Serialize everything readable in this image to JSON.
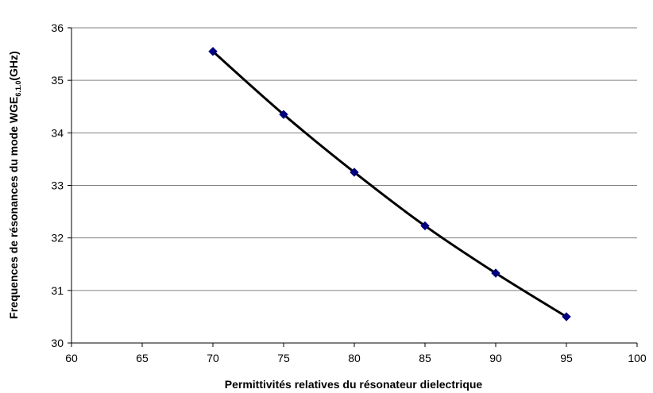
{
  "chart_data": {
    "type": "line",
    "xlabel": "Permittivités relatives du résonateur dielectrique",
    "ylabel": {
      "main": "Frequences de résonances du mode WGE",
      "subscript": "6.1.0",
      "suffix": "(GHz)"
    },
    "xlim": [
      60,
      100
    ],
    "ylim": [
      30,
      36
    ],
    "x_ticks": [
      60,
      65,
      70,
      75,
      80,
      85,
      90,
      95,
      100
    ],
    "y_ticks": [
      30,
      31,
      32,
      33,
      34,
      35,
      36
    ],
    "grid": "horizontal",
    "series": [
      {
        "x": [
          70,
          75,
          80,
          85,
          90,
          95
        ],
        "y": [
          35.55,
          34.35,
          33.25,
          32.23,
          31.33,
          30.5
        ],
        "line_color": "#000000",
        "marker": "diamond",
        "marker_color": "#000080"
      }
    ]
  }
}
